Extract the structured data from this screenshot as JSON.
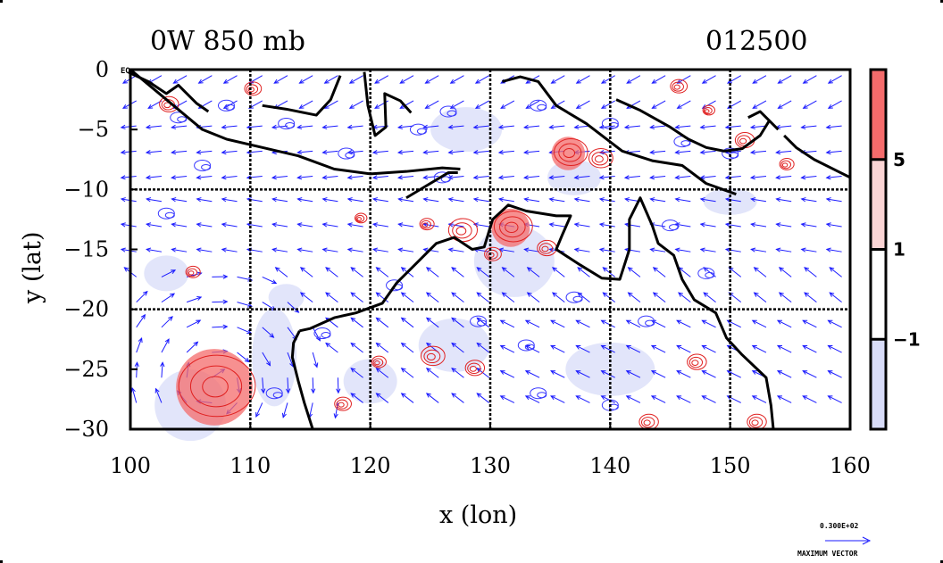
{
  "title_left": "0W 850 mb",
  "title_right": "012500",
  "corner_label": "EQ",
  "map": {
    "lon_range": [
      100,
      160
    ],
    "lat_range": [
      -30,
      0
    ],
    "x_ticks": [
      "100",
      "110",
      "120",
      "130",
      "140",
      "150",
      "160"
    ],
    "y_ticks": [
      "0",
      "−5",
      "−10",
      "−15",
      "−20",
      "−25",
      "−30"
    ],
    "x_label": "x (lon)",
    "y_label": "y (lat)",
    "grid_lons": [
      110,
      120,
      130,
      140,
      150
    ],
    "grid_lats": [
      -10,
      -20
    ],
    "vector_color": "#1a1aff",
    "coast_color": "#000000",
    "positive_contour_color": "#e02020",
    "negative_contour_color": "#3a3aff"
  },
  "colorbar": {
    "levels": [
      "5",
      "1",
      "−1"
    ],
    "colors": [
      "#f46b6b",
      "#fad4d4",
      "#ffffff",
      "#d8dcf8"
    ]
  },
  "reference_vector": {
    "value": "0.300E+02",
    "label": "MAXIMUM VECTOR"
  }
}
